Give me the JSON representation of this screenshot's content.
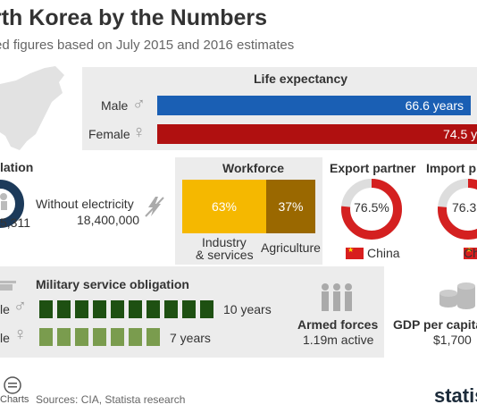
{
  "header": {
    "title": "rth Korea by the Numbers",
    "subtitle": "ed figures based on July 2015 and 2016 estimates"
  },
  "life_expectancy": {
    "title": "Life expectancy",
    "rows": [
      {
        "label": "Male",
        "value_text": "66.6 years",
        "color": "#1a5fb4"
      },
      {
        "label": "Female",
        "value_text": "74.5 y",
        "color": "#b01010"
      }
    ]
  },
  "population": {
    "label": "lation",
    "value_text": "5,311",
    "without_electricity_label": "Without electricity",
    "without_electricity_value": "18,400,000"
  },
  "workforce": {
    "title": "Workforce",
    "segments": [
      {
        "share_text": "63%",
        "label_line1": "Industry",
        "label_line2": "& services",
        "color": "#f5b800"
      },
      {
        "share_text": "37%",
        "label_line1": "Agriculture",
        "label_line2": "",
        "color": "#9a6800"
      }
    ]
  },
  "export": {
    "title": "Export partner",
    "value_text": "76.5%",
    "partner": "China",
    "color": "#d42020"
  },
  "import": {
    "title": "Import p",
    "value_text": "76.3",
    "partner": "Ch",
    "color": "#d42020"
  },
  "military": {
    "title": "Military service obligation",
    "male_label": "le",
    "male_years": "10 years",
    "female_label": "le",
    "female_years": "7 years",
    "male_color": "#1e5012",
    "female_color": "#7a9c4e"
  },
  "armed_forces": {
    "label": "Armed forces",
    "value_text": "1.19m active"
  },
  "gdp": {
    "label": "GDP per capita",
    "value_text": "$1,700"
  },
  "footer": {
    "charts_text": "Charts",
    "sources": "Sources: CIA, Statista research",
    "brand": "statis"
  },
  "chart_data": [
    {
      "type": "bar",
      "title": "Life expectancy",
      "categories": [
        "Male",
        "Female"
      ],
      "values": [
        66.6,
        74.5
      ],
      "unit": "years"
    },
    {
      "type": "bar",
      "title": "Workforce",
      "categories": [
        "Industry & services",
        "Agriculture"
      ],
      "values": [
        63,
        37
      ],
      "unit": "%"
    },
    {
      "type": "pie",
      "title": "Export partner",
      "categories": [
        "China"
      ],
      "values": [
        76.5
      ],
      "unit": "%"
    },
    {
      "type": "pie",
      "title": "Import p",
      "categories": [
        "Ch"
      ],
      "values": [
        76.3
      ],
      "unit": "%"
    },
    {
      "type": "bar",
      "title": "Military service obligation",
      "categories": [
        "Male",
        "Female"
      ],
      "values": [
        10,
        7
      ],
      "unit": "years"
    }
  ]
}
